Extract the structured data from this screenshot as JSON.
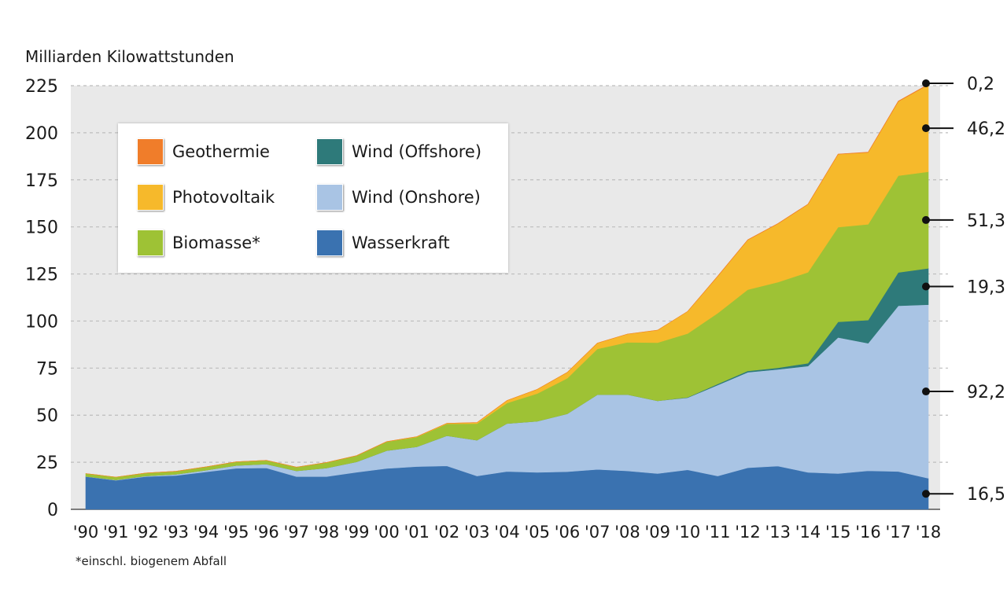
{
  "chart_data": {
    "type": "area",
    "stacked": true,
    "ylabel": "Milliarden Kilowattstunden",
    "ylim": [
      0,
      225
    ],
    "yticks": [
      0,
      25,
      50,
      75,
      100,
      125,
      150,
      175,
      200,
      225
    ],
    "grid": true,
    "legend_position": "top-left",
    "categories": [
      "'90",
      "'91",
      "'92",
      "'93",
      "'94",
      "'95",
      "'96",
      "'97",
      "'98",
      "'99",
      "'00",
      "'01",
      "'02",
      "'03",
      "'04",
      "'05",
      "'06",
      "'07",
      "'08",
      "'09",
      "'10",
      "'11",
      "'12",
      "'13",
      "'14",
      "'15",
      "'16",
      "'17",
      "'18"
    ],
    "series": [
      {
        "name": "Wasserkraft",
        "color": "#3a72b0",
        "values": [
          17.4,
          15.4,
          17.4,
          18.0,
          19.9,
          21.8,
          22.0,
          17.4,
          17.4,
          19.7,
          21.7,
          22.7,
          23.1,
          17.7,
          20.1,
          19.6,
          20.0,
          21.2,
          20.4,
          19.0,
          21.0,
          17.7,
          22.1,
          23.0,
          19.6,
          19.0,
          20.5,
          20.1,
          16.5
        ]
      },
      {
        "name": "Wind (Onshore)",
        "color": "#a9c4e4",
        "values": [
          0.1,
          0.2,
          0.3,
          0.6,
          0.9,
          1.5,
          2.0,
          3.0,
          4.5,
          5.5,
          9.5,
          10.5,
          16.0,
          19.0,
          25.5,
          27.2,
          30.7,
          39.7,
          40.6,
          38.6,
          38.3,
          48.3,
          50.7,
          51.3,
          56.5,
          72.3,
          67.7,
          88.0,
          92.2
        ]
      },
      {
        "name": "Wind (Offshore)",
        "color": "#2e7a7a",
        "values": [
          0,
          0,
          0,
          0,
          0,
          0,
          0,
          0,
          0,
          0,
          0,
          0,
          0,
          0,
          0,
          0,
          0,
          0,
          0,
          0.04,
          0.2,
          0.6,
          0.7,
          0.9,
          1.5,
          8.3,
          12.3,
          17.7,
          19.3
        ]
      },
      {
        "name": "Biomasse*",
        "color": "#9ec235",
        "values": [
          1.5,
          1.5,
          1.6,
          1.6,
          1.8,
          1.9,
          2.0,
          2.0,
          3.0,
          3.3,
          4.7,
          5.2,
          6.3,
          8.8,
          10.9,
          14.7,
          18.9,
          24.3,
          27.7,
          30.9,
          33.9,
          37.6,
          43.2,
          45.5,
          48.3,
          50.3,
          50.9,
          51.4,
          51.3
        ]
      },
      {
        "name": "Photovoltaik",
        "color": "#f6b92b",
        "values": [
          0,
          0,
          0,
          0,
          0,
          0,
          0,
          0,
          0,
          0,
          0.1,
          0.2,
          0.3,
          0.6,
          1.3,
          2.2,
          3.1,
          3.1,
          4.4,
          6.6,
          11.7,
          19.6,
          26.4,
          31.0,
          36.1,
          38.7,
          38.1,
          39.4,
          46.2
        ]
      },
      {
        "name": "Geothermie",
        "color": "#f07d2a",
        "values": [
          0,
          0,
          0,
          0,
          0,
          0,
          0,
          0,
          0,
          0,
          0,
          0,
          0,
          0,
          0,
          0,
          0,
          0,
          0,
          0,
          0,
          0.1,
          0.1,
          0.1,
          0.1,
          0.1,
          0.2,
          0.2,
          0.2
        ]
      }
    ],
    "annotations": [
      "0,2",
      "46,2",
      "51,3",
      "19,3",
      "92,2",
      "16,5"
    ],
    "legend": [
      {
        "label": "Geothermie",
        "color": "#f07d2a"
      },
      {
        "label": "Wind (Offshore)",
        "color": "#2e7a7a"
      },
      {
        "label": "Photovoltaik",
        "color": "#f6b92b"
      },
      {
        "label": "Wind (Onshore)",
        "color": "#a9c4e4"
      },
      {
        "label": "Biomasse*",
        "color": "#9ec235"
      },
      {
        "label": "Wasserkraft",
        "color": "#3a72b0"
      }
    ],
    "footnote": "*einschl. biogenem Abfall"
  }
}
